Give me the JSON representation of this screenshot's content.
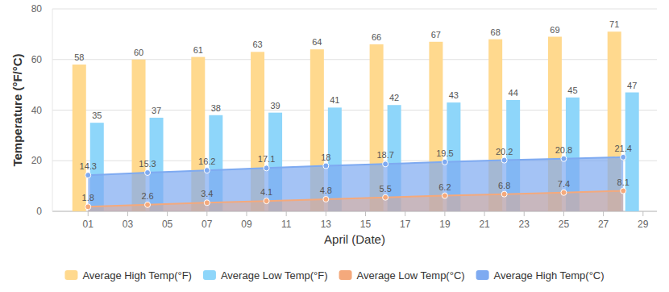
{
  "chart_data": {
    "type": "bar",
    "x_label": "April (Date)",
    "y_label": "Temperature (°F/°C)",
    "x": [
      1,
      4,
      7,
      10,
      13,
      16,
      19,
      22,
      25,
      28
    ],
    "xlim": [
      -0.8,
      29.7
    ],
    "xticks": [
      {
        "value": 1,
        "label": "01"
      },
      {
        "value": 3,
        "label": "03"
      },
      {
        "value": 5,
        "label": "05"
      },
      {
        "value": 7,
        "label": "07"
      },
      {
        "value": 9,
        "label": "09"
      },
      {
        "value": 11,
        "label": "11"
      },
      {
        "value": 13,
        "label": "13"
      },
      {
        "value": 15,
        "label": "15"
      },
      {
        "value": 17,
        "label": "17"
      },
      {
        "value": 19,
        "label": "19"
      },
      {
        "value": 21,
        "label": "21"
      },
      {
        "value": 23,
        "label": "23"
      },
      {
        "value": 25,
        "label": "25"
      },
      {
        "value": 27,
        "label": "27"
      },
      {
        "value": 29,
        "label": "29"
      }
    ],
    "ylim": [
      0,
      80
    ],
    "yticks": [
      0,
      20,
      40,
      60,
      80
    ],
    "grid": true,
    "legend": "bottom",
    "data_labels": true,
    "series": [
      {
        "name": "Average High Temp(°F)",
        "type": "bar",
        "color": "#ffd98e",
        "values": [
          58,
          60,
          61,
          63,
          64,
          66,
          67,
          68,
          69,
          71
        ]
      },
      {
        "name": "Average Low Temp(°F)",
        "type": "bar",
        "color": "#8ed6fa",
        "values": [
          35,
          37,
          38,
          39,
          41,
          42,
          43,
          44,
          45,
          47
        ]
      },
      {
        "name": "Average Low Temp(°C)",
        "type": "area",
        "color": "#f4a97c",
        "marker": "circle",
        "values": [
          1.8,
          2.6,
          3.4,
          4.1,
          4.8,
          5.5,
          6.2,
          6.8,
          7.4,
          8.1
        ]
      },
      {
        "name": "Average High Temp(°C)",
        "type": "area",
        "color": "#7eaaf1",
        "marker": "circle",
        "values": [
          14.3,
          15.3,
          16.2,
          17.1,
          18,
          18.7,
          19.5,
          20.2,
          20.8,
          21.4
        ]
      }
    ]
  }
}
